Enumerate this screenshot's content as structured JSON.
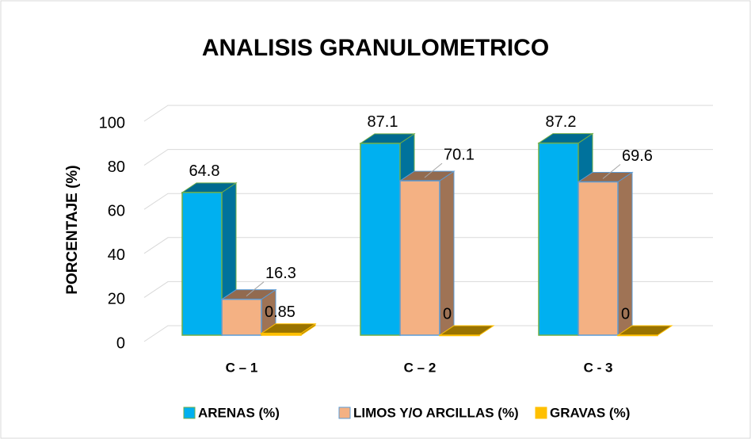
{
  "chart_data": {
    "type": "bar3d",
    "title": "ANALISIS GRANULOMETRICO",
    "ylabel": "PORCENTAJE (%)",
    "categories": [
      "C – 1",
      "C – 2",
      "C - 3"
    ],
    "series": [
      {
        "name": "ARENAS (%)",
        "color": "#00b0f0",
        "values": [
          64.8,
          87.1,
          87.2
        ]
      },
      {
        "name": "LIMOS Y/O ARCILLAS (%)",
        "color": "#f4b183",
        "values": [
          16.3,
          70.1,
          69.6
        ]
      },
      {
        "name": "GRAVAS (%)",
        "color": "#ffc000",
        "values": [
          0.85,
          0,
          0
        ]
      }
    ],
    "ylim": [
      0,
      100
    ],
    "yticks": [
      0,
      20,
      40,
      60,
      80,
      100
    ],
    "grid": true,
    "legend": "bottom"
  }
}
